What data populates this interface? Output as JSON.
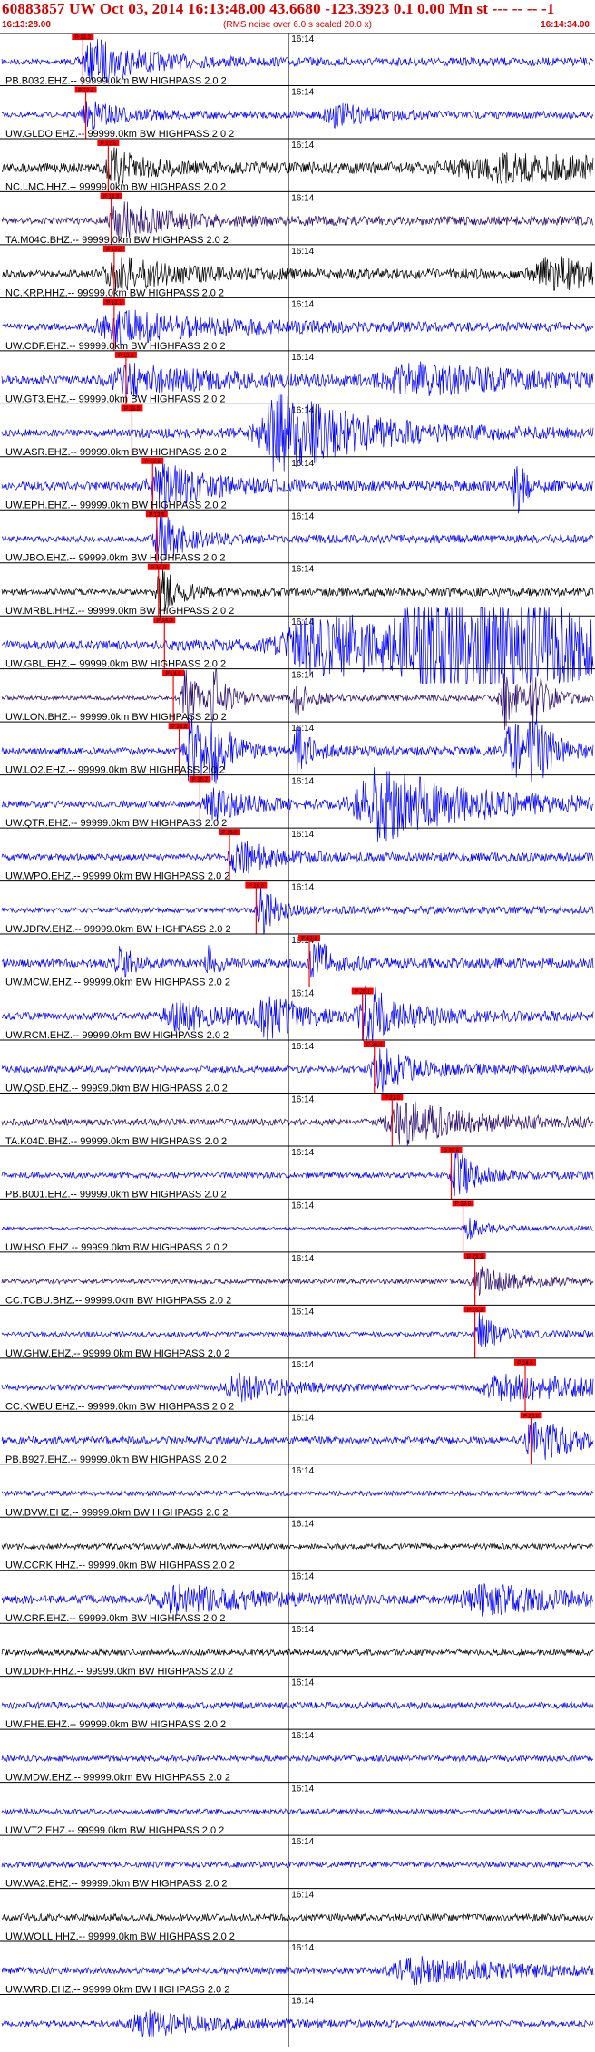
{
  "header": {
    "title": "60883857 UW Oct 03, 2014 16:13:48.00   43.6680 -123.3923  0.1 0.00 Mn st --- -- --  -1",
    "start_time": "16:13:28.00",
    "rms_note": "(RMS noise over 6.0 s scaled 20.0 x)",
    "end_time": "16:14:34.00"
  },
  "colors": {
    "header_red": "#d40000",
    "blue": "#0000ff",
    "black": "#000000",
    "purple": "#2a0a6e",
    "pick": "#ff0000"
  },
  "chart_data": {
    "type": "line",
    "title": "60883857 UW Oct 03, 2014 16:13:48.00   43.6680 -123.3923  0.1 0.00 Mn st --- -- --  -1",
    "time_start": "16:13:28.00",
    "time_end": "16:14:34.00",
    "time_mark": "16:14",
    "traces": [
      {
        "label": "PB.B032.EHZ.-- 99999.0km BW  HIGHPASS  2.0  2",
        "color": "blue",
        "pick": 0.137,
        "amp": 0.35,
        "events": [
          [
            0.16,
            2.6,
            0.03
          ]
        ],
        "pick_label": "P 12.3"
      },
      {
        "label": "UW.GLDO.EHZ.-- 99999.0km BW  HIGHPASS  2.0  2",
        "color": "blue",
        "pick": 0.142,
        "amp": 0.3,
        "events": [
          [
            0.15,
            1.6,
            0.02
          ],
          [
            0.56,
            1.4,
            0.02
          ]
        ],
        "pick_label": "P 12.4"
      },
      {
        "label": "NC.LMC.HHZ.-- 99999.0km BW  HIGHPASS  2.0  2",
        "color": "black",
        "pick": 0.18,
        "amp": 0.55,
        "events": [
          [
            0.19,
            1.8,
            0.02
          ],
          [
            0.85,
            1.3,
            0.12
          ]
        ],
        "pick_label": "P 12.6"
      },
      {
        "label": "TA.M04C.BHZ.-- 99999.0km BW  HIGHPASS  2.0  2",
        "color": "purple",
        "pick": 0.185,
        "amp": 0.4,
        "events": [
          [
            0.2,
            2.0,
            0.03
          ]
        ],
        "pick_label": "P 12.9"
      },
      {
        "label": "NC.KRP.HHZ.-- 99999.0km BW  HIGHPASS  2.0  2",
        "color": "black",
        "pick": 0.19,
        "amp": 0.45,
        "events": [
          [
            0.2,
            1.7,
            0.04
          ],
          [
            0.93,
            1.8,
            0.04
          ]
        ],
        "pick_label": "P 13.0"
      },
      {
        "label": "UW.CDF.EHZ.-- 99999.0km BW  HIGHPASS  2.0  2",
        "color": "blue",
        "pick": 0.19,
        "amp": 0.4,
        "events": [
          [
            0.2,
            1.8,
            0.06
          ]
        ],
        "pick_label": "P 13.1"
      },
      {
        "label": "UW.GT3.EHZ.-- 99999.0km BW  HIGHPASS  2.0  2",
        "color": "blue",
        "pick": 0.21,
        "amp": 0.5,
        "events": [
          [
            0.22,
            1.6,
            0.06
          ],
          [
            0.7,
            1.6,
            0.08
          ]
        ],
        "pick_label": "P 13.3"
      },
      {
        "label": "UW.ASR.EHZ.-- 99999.0km BW  HIGHPASS  2.0  2",
        "color": "blue",
        "pick": 0.22,
        "amp": 0.45,
        "events": [
          [
            0.47,
            5.0,
            0.05
          ]
        ],
        "pick_label": "P 13.5"
      },
      {
        "label": "UW.EPH.EHZ.-- 99999.0km BW  HIGHPASS  2.0  2",
        "color": "blue",
        "pick": 0.255,
        "amp": 0.5,
        "events": [
          [
            0.27,
            2.6,
            0.03
          ],
          [
            0.87,
            3.5,
            0.005
          ]
        ],
        "pick_label": "P 13.8"
      },
      {
        "label": "UW.JBO.EHZ.-- 99999.0km BW  HIGHPASS  2.0  2",
        "color": "blue",
        "pick": 0.262,
        "amp": 0.35,
        "events": [
          [
            0.27,
            2.8,
            0.015
          ]
        ],
        "pick_label": "P 13.9"
      },
      {
        "label": "UW.MRBL.HHZ.-- 99999.0km BW  HIGHPASS  2.0  2",
        "color": "black",
        "pick": 0.265,
        "amp": 0.35,
        "events": [
          [
            0.27,
            3.0,
            0.01
          ]
        ],
        "pick_label": "P 14.0"
      },
      {
        "label": "UW.GBL.EHZ.-- 99999.0km BW  HIGHPASS  2.0  2",
        "color": "blue",
        "pick": 0.275,
        "amp": 0.5,
        "events": [
          [
            0.55,
            3.5,
            0.12
          ],
          [
            0.72,
            4.8,
            0.06
          ],
          [
            0.85,
            3.5,
            0.08
          ]
        ],
        "pick_label": "P 14.3"
      },
      {
        "label": "UW.LON.BHZ.-- 99999.0km BW  HIGHPASS  2.0  2",
        "color": "purple",
        "pick": 0.29,
        "amp": 0.25,
        "events": [
          [
            0.31,
            3.5,
            0.008
          ],
          [
            0.36,
            3.2,
            0.008
          ],
          [
            0.5,
            1.8,
            0.008
          ],
          [
            0.85,
            3.6,
            0.008
          ],
          [
            0.9,
            3.2,
            0.008
          ]
        ],
        "pick_label": "P 14.6"
      },
      {
        "label": "UW.LO2.EHZ.-- 99999.0km BW  HIGHPASS  2.0  2",
        "color": "blue",
        "pick": 0.3,
        "amp": 0.4,
        "events": [
          [
            0.32,
            4.0,
            0.012
          ],
          [
            0.36,
            3.2,
            0.01
          ],
          [
            0.5,
            2.8,
            0.008
          ],
          [
            0.86,
            4.0,
            0.012
          ],
          [
            0.9,
            3.8,
            0.01
          ]
        ],
        "pick_label": "P 14.8"
      },
      {
        "label": "UW.QTR.EHZ.-- 99999.0km BW  HIGHPASS  2.0  2",
        "color": "blue",
        "pick": 0.335,
        "amp": 0.4,
        "events": [
          [
            0.36,
            1.8,
            0.02
          ],
          [
            0.64,
            4.2,
            0.06
          ]
        ],
        "pick_label": "P 15.2"
      },
      {
        "label": "UW.WPO.EHZ.-- 99999.0km BW  HIGHPASS  2.0  2",
        "color": "blue",
        "pick": 0.385,
        "amp": 0.4,
        "events": [
          [
            0.4,
            2.0,
            0.02
          ]
        ],
        "pick_label": "P 16.0"
      },
      {
        "label": "UW.JDRV.EHZ.-- 99999.0km BW  HIGHPASS  2.0  2",
        "color": "blue",
        "pick": 0.43,
        "amp": 0.3,
        "events": [
          [
            0.44,
            3.0,
            0.008
          ]
        ],
        "pick_label": "P 16.6"
      },
      {
        "label": "UW.MCW.EHZ.-- 99999.0km BW  HIGHPASS  2.0  2",
        "color": "blue",
        "pick": 0.52,
        "amp": 0.5,
        "events": [
          [
            0.53,
            3.0,
            0.01
          ],
          [
            0.2,
            2.5,
            0.006
          ],
          [
            0.35,
            2.0,
            0.005
          ]
        ],
        "pick_label": "P 18.1"
      },
      {
        "label": "UW.RCM.EHZ.-- 99999.0km BW  HIGHPASS  2.0  2",
        "color": "blue",
        "pick": 0.61,
        "amp": 0.45,
        "events": [
          [
            0.62,
            3.5,
            0.02
          ],
          [
            0.3,
            1.6,
            0.04
          ],
          [
            0.45,
            2.4,
            0.02
          ]
        ],
        "pick_label": "P 20.1"
      },
      {
        "label": "UW.QSD.EHZ.-- 99999.0km BW  HIGHPASS  2.0  2",
        "color": "blue",
        "pick": 0.63,
        "amp": 0.4,
        "events": [
          [
            0.64,
            2.4,
            0.02
          ]
        ],
        "pick_label": "P 20.4"
      },
      {
        "label": "TA.K04D.BHZ.-- 99999.0km BW  HIGHPASS  2.0  2",
        "color": "purple",
        "pick": 0.66,
        "amp": 0.4,
        "events": [
          [
            0.68,
            2.4,
            0.04
          ]
        ],
        "pick_label": "P 21.0"
      },
      {
        "label": "PB.B001.EHZ.-- 99999.0km BW  HIGHPASS  2.0  2",
        "color": "blue",
        "pick": 0.76,
        "amp": 0.35,
        "events": [
          [
            0.77,
            3.0,
            0.01
          ]
        ],
        "pick_label": "P 22.6"
      },
      {
        "label": "UW.HSO.EHZ.-- 99999.0km BW  HIGHPASS  2.0  2",
        "color": "blue",
        "pick": 0.78,
        "amp": 0.15,
        "events": [
          [
            0.79,
            1.2,
            0.01
          ]
        ],
        "pick_label": "P 23.0"
      },
      {
        "label": "CC.TCBU.BHZ.-- 99999.0km BW  HIGHPASS  2.0  2",
        "color": "purple",
        "pick": 0.8,
        "amp": 0.3,
        "events": [
          [
            0.81,
            1.4,
            0.02
          ]
        ],
        "pick_label": "P 23.3"
      },
      {
        "label": "UW.GHW.EHZ.-- 99999.0km BW  HIGHPASS  2.0  2",
        "color": "blue",
        "pick": 0.8,
        "amp": 0.3,
        "events": [
          [
            0.81,
            3.0,
            0.006
          ]
        ],
        "pick_label": "P 23.3"
      },
      {
        "label": "CC.KWBU.EHZ.-- 99999.0km BW  HIGHPASS  2.0  2",
        "color": "blue",
        "pick": 0.885,
        "amp": 0.35,
        "events": [
          [
            0.4,
            1.6,
            0.03
          ],
          [
            0.85,
            1.5,
            0.06
          ]
        ],
        "pick_label": "P 24.8"
      },
      {
        "label": "PB.B927.EHZ.-- 99999.0km BW  HIGHPASS  2.0  2",
        "color": "blue",
        "pick": 0.895,
        "amp": 0.45,
        "events": [
          [
            0.9,
            2.6,
            0.02
          ]
        ],
        "pick_label": "P 25.0"
      },
      {
        "label": "UW.BVW.EHZ.-- 99999.0km BW  HIGHPASS  2.0  2",
        "color": "blue",
        "pick": -1,
        "amp": 0.3,
        "events": []
      },
      {
        "label": "UW.CCRK.HHZ.-- 99999.0km BW  HIGHPASS  2.0  2",
        "color": "black",
        "pick": -1,
        "amp": 0.35,
        "events": []
      },
      {
        "label": "UW.CRF.EHZ.-- 99999.0km BW  HIGHPASS  2.0  2",
        "color": "blue",
        "pick": -1,
        "amp": 0.5,
        "events": [
          [
            0.3,
            1.6,
            0.05
          ],
          [
            0.82,
            1.6,
            0.06
          ]
        ]
      },
      {
        "label": "UW.DDRF.HHZ.-- 99999.0km BW  HIGHPASS  2.0  2",
        "color": "black",
        "pick": -1,
        "amp": 0.35,
        "events": []
      },
      {
        "label": "UW.FHE.EHZ.-- 99999.0km BW  HIGHPASS  2.0  2",
        "color": "blue",
        "pick": -1,
        "amp": 0.4,
        "events": []
      },
      {
        "label": "UW.MDW.EHZ.-- 99999.0km BW  HIGHPASS  2.0  2",
        "color": "blue",
        "pick": -1,
        "amp": 0.35,
        "events": []
      },
      {
        "label": "UW.VT2.EHZ.-- 99999.0km BW  HIGHPASS  2.0  2",
        "color": "blue",
        "pick": -1,
        "amp": 0.3,
        "events": []
      },
      {
        "label": "UW.WA2.EHZ.-- 99999.0km BW  HIGHPASS  2.0  2",
        "color": "blue",
        "pick": -1,
        "amp": 0.35,
        "events": []
      },
      {
        "label": "UW.WOLL.HHZ.-- 99999.0km BW  HIGHPASS  2.0  2",
        "color": "black",
        "pick": -1,
        "amp": 0.45,
        "events": []
      },
      {
        "label": "UW.WRD.EHZ.-- 99999.0km BW  HIGHPASS  2.0  2",
        "color": "blue",
        "pick": -1,
        "amp": 0.4,
        "events": [
          [
            0.7,
            1.5,
            0.06
          ]
        ]
      },
      {
        "label": "",
        "color": "blue",
        "pick": -1,
        "amp": 0.35,
        "events": [
          [
            0.25,
            1.4,
            0.05
          ]
        ]
      }
    ]
  }
}
